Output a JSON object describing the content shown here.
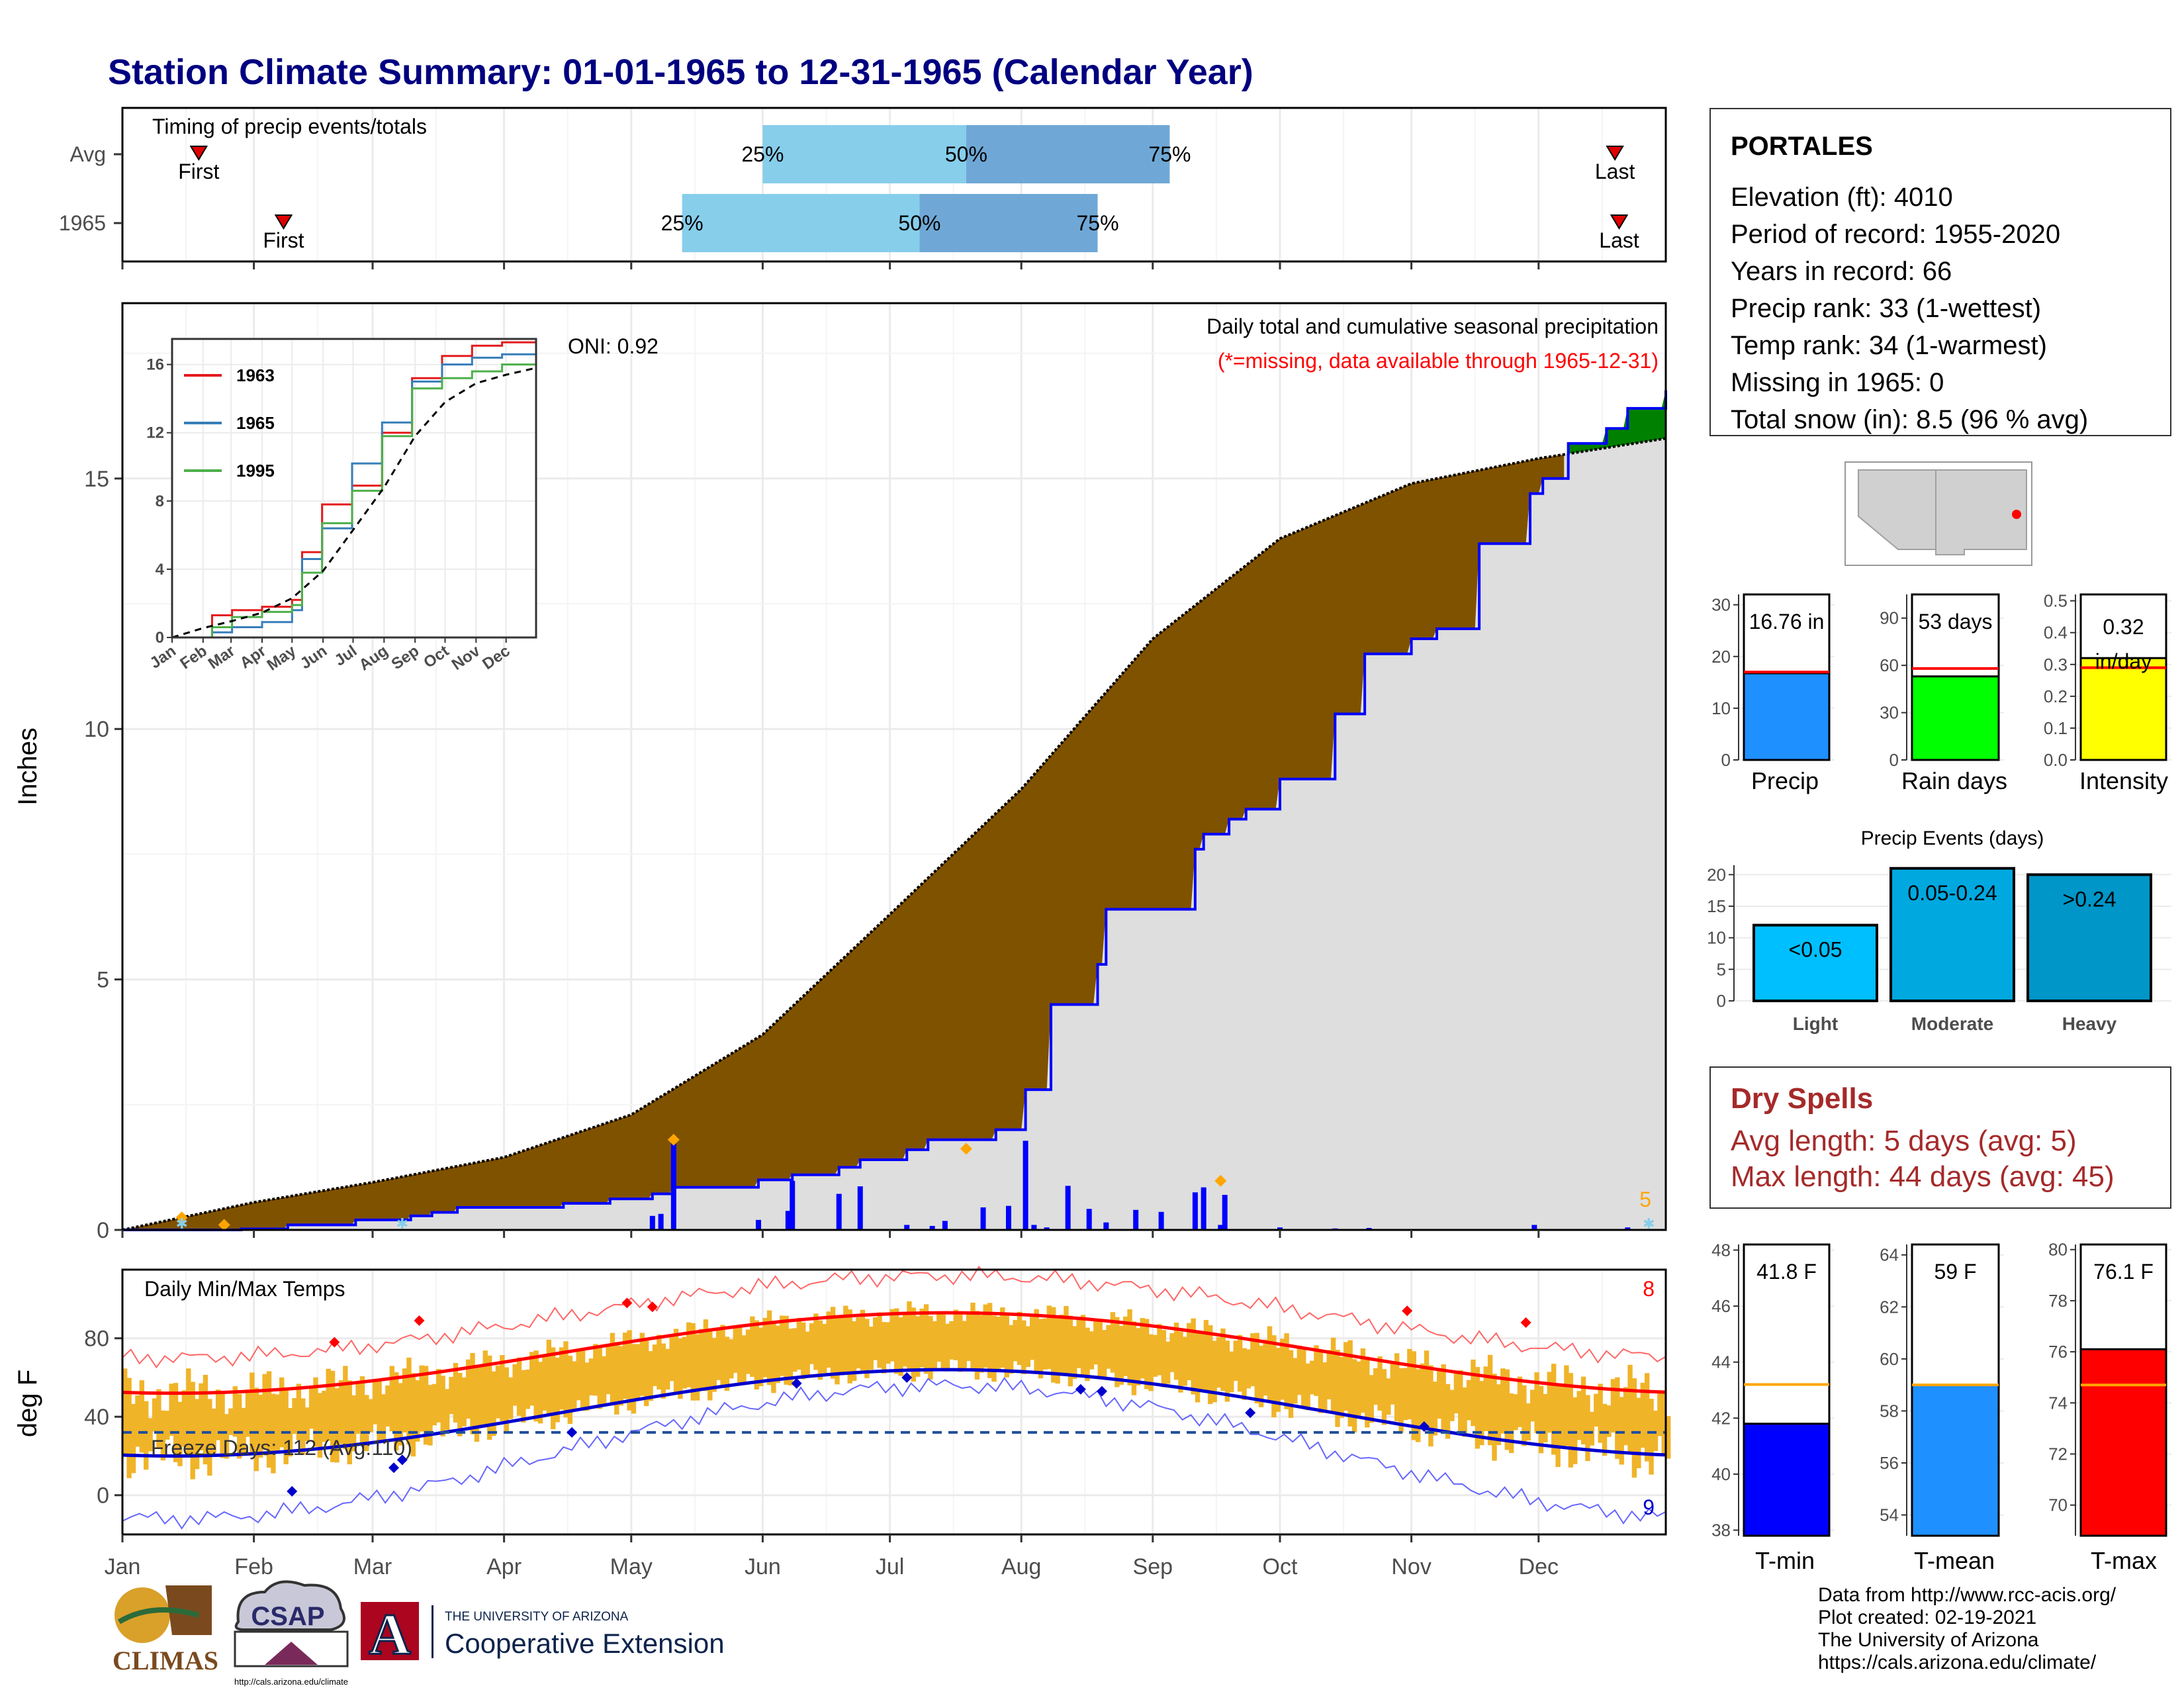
{
  "title": "Station Climate Summary: 01-01-1965 to 12-31-1965 (Calendar Year)",
  "station": {
    "name": "PORTALES",
    "lines": [
      "Elevation (ft): 4010",
      "Period of record: 1955-2020",
      "Years in record: 66",
      "Precip rank: 33 (1-wettest)",
      "Temp rank: 34 (1-warmest)",
      "Missing in 1965: 0",
      "Total snow (in): 8.5 (96 % avg)"
    ]
  },
  "dry_spells": {
    "title": "Dry Spells",
    "avg": "Avg length: 5 days (avg: 5)",
    "max": "Max length: 44 days (avg: 45)"
  },
  "footer": {
    "lines": [
      "Data from http://www.rcc-acis.org/",
      "Plot created: 02-19-2021",
      "The University of Arizona",
      "https://cals.arizona.edu/climate/"
    ]
  },
  "logos": {
    "climas": "CLIMAS",
    "csap": "CSAP",
    "csap_url": "http://cals.arizona.edu/climate",
    "ua_small": "THE UNIVERSITY OF ARIZONA",
    "ua_big": "Cooperative Extension",
    "ua_letter": "A"
  },
  "colors": {
    "title": "#000080",
    "q_light": "#87ceeb",
    "q_dark": "#6fa8d6",
    "precip_green": "#008000",
    "precip_brown": "#7f5200",
    "cumavg_fill": "#dedede",
    "cum_line": "#0000ff",
    "temp_bar": "#f0b429",
    "tmax_line": "#ff0000",
    "tmin_line": "#0000cd",
    "dry_red": "#a52a2a"
  },
  "chart_data": [
    {
      "type": "bar",
      "name": "timing",
      "title": "Timing of precip events/totals",
      "categories": [
        "Avg",
        "1965"
      ],
      "rows": [
        {
          "label": "Avg",
          "first": "Jan 19",
          "p25": "Jun 1",
          "p50": "Jul 19",
          "p75": "Sep 5",
          "last": "Dec 19"
        },
        {
          "label": "1965",
          "first": "Feb 8",
          "p25": "May 13",
          "p50": "Jul 8",
          "p75": "Aug 19",
          "last": "Dec 20"
        }
      ],
      "text": {
        "first": "First",
        "last": "Last",
        "p25": "25%",
        "p50": "50%",
        "p75": "75%"
      }
    },
    {
      "type": "area",
      "name": "cumulative-precip",
      "ylabel": "Inches",
      "ylim": [
        0,
        18.5
      ],
      "yticks": [
        0,
        5,
        10,
        15
      ],
      "xlabels": [
        "Jan",
        "Feb",
        "Mar",
        "Apr",
        "May",
        "Jun",
        "Jul",
        "Aug",
        "Sep",
        "Oct",
        "Nov",
        "Dec"
      ],
      "title": "Daily total and cumulative seasonal precipitation",
      "subtitle": "(*=missing, data available through 1965-12-31)",
      "oni": "ONI: 0.92",
      "corner": "5",
      "avg_cumulative": {
        "x": [
          0,
          31,
          59,
          90,
          120,
          151,
          181,
          212,
          243,
          273,
          304,
          334,
          364
        ],
        "y": [
          0,
          0.55,
          0.95,
          1.45,
          2.3,
          3.9,
          6.3,
          8.8,
          11.8,
          13.8,
          14.9,
          15.4,
          15.8
        ]
      },
      "obs_cumulative": {
        "x": [
          0,
          28,
          39,
          55,
          68,
          73,
          79,
          104,
          115,
          125,
          130,
          150,
          158,
          169,
          174,
          185,
          190,
          206,
          213,
          219,
          230,
          232,
          253,
          255,
          261,
          265,
          273,
          286,
          293,
          304,
          310,
          320,
          332,
          335,
          341,
          350,
          355,
          364
        ],
        "y": [
          0,
          0.02,
          0.1,
          0.2,
          0.28,
          0.35,
          0.45,
          0.53,
          0.62,
          0.72,
          0.85,
          1.0,
          1.1,
          1.25,
          1.4,
          1.6,
          1.8,
          2.0,
          2.8,
          4.5,
          5.3,
          6.4,
          7.6,
          7.9,
          8.2,
          8.4,
          9.0,
          10.3,
          11.5,
          11.8,
          12.0,
          13.7,
          14.7,
          15.0,
          15.7,
          16.0,
          16.4,
          16.76
        ]
      },
      "daily": {
        "x": [
          125,
          127,
          130,
          150,
          157,
          158,
          169,
          174,
          185,
          191,
          194,
          203,
          209,
          213,
          215,
          218,
          223,
          228,
          232,
          239,
          245,
          253,
          255,
          259,
          260,
          273,
          286,
          294,
          304,
          333,
          344,
          355
        ],
        "y": [
          0.28,
          0.32,
          1.78,
          0.2,
          0.38,
          0.98,
          0.72,
          0.87,
          0.1,
          0.08,
          0.18,
          0.45,
          0.48,
          1.78,
          0.1,
          0.05,
          0.88,
          0.42,
          0.15,
          0.4,
          0.36,
          0.75,
          0.85,
          0.1,
          0.7,
          0.05,
          0.03,
          0.04,
          0.02,
          0.1,
          0.02,
          0.05
        ]
      },
      "snow_days": [
        14,
        66,
        360
      ],
      "extreme_days": [
        {
          "x": 14,
          "y": 0.25
        },
        {
          "x": 24,
          "y": 0.1
        },
        {
          "x": 130,
          "y": 1.8
        },
        {
          "x": 199,
          "y": 1.62
        },
        {
          "x": 259,
          "y": 0.98
        }
      ]
    },
    {
      "type": "line",
      "name": "inset-cumulative",
      "xlabels": [
        "Jan",
        "Feb",
        "Mar",
        "Apr",
        "May",
        "Jun",
        "Jul",
        "Aug",
        "Sep",
        "Oct",
        "Nov",
        "Dec"
      ],
      "yticks": [
        0,
        4,
        8,
        12,
        16
      ],
      "ylim": [
        0,
        17.5
      ],
      "series": [
        {
          "name": "1963",
          "x": [
            0,
            40,
            60,
            90,
            120,
            130,
            150,
            180,
            210,
            240,
            270,
            300,
            330,
            364
          ],
          "y": [
            0,
            1.3,
            1.6,
            1.8,
            2.2,
            5.0,
            7.8,
            8.9,
            12.0,
            15.2,
            16.5,
            17.1,
            17.3,
            17.5
          ]
        },
        {
          "name": "1965",
          "x": [
            0,
            40,
            60,
            90,
            120,
            130,
            150,
            180,
            210,
            240,
            270,
            300,
            330,
            364
          ],
          "y": [
            0,
            0.3,
            0.6,
            0.9,
            1.6,
            4.6,
            6.4,
            10.2,
            12.6,
            15.0,
            16.0,
            16.4,
            16.6,
            16.9
          ]
        },
        {
          "name": "1995",
          "x": [
            0,
            40,
            60,
            90,
            120,
            130,
            150,
            180,
            210,
            240,
            270,
            300,
            330,
            364
          ],
          "y": [
            0,
            0.6,
            1.2,
            1.5,
            1.9,
            3.8,
            6.7,
            8.6,
            11.8,
            14.6,
            15.2,
            15.6,
            16.0,
            16.5
          ]
        },
        {
          "name": "avg",
          "x": [
            0,
            31,
            59,
            90,
            120,
            151,
            181,
            212,
            243,
            273,
            304,
            334,
            364
          ],
          "y": [
            0,
            0.55,
            0.95,
            1.45,
            2.3,
            3.9,
            6.3,
            8.8,
            11.8,
            13.8,
            14.9,
            15.4,
            15.8
          ]
        }
      ]
    },
    {
      "type": "bar",
      "name": "daily-temps",
      "title": "Daily Min/Max Temps",
      "ylabel": "deg F",
      "ylim": [
        -20,
        115
      ],
      "yticks": [
        0,
        40,
        80
      ],
      "xlabels": [
        "Jan",
        "Feb",
        "Mar",
        "Apr",
        "May",
        "Jun",
        "Jul",
        "Aug",
        "Sep",
        "Oct",
        "Nov",
        "Dec"
      ],
      "freeze_line": 32,
      "freeze_text": "Freeze Days: 112 (Avg:110)",
      "count_high": "8",
      "count_low": "9",
      "avg_max_range": [
        52,
        93
      ],
      "avg_min_range": [
        20,
        64
      ],
      "record_max_range": [
        70,
        112
      ],
      "record_min_range": [
        -12,
        56
      ]
    },
    {
      "type": "bar",
      "name": "precip-total",
      "xlabel": "Precip",
      "value": 16.76,
      "avg": 17.0,
      "label": "16.76 in",
      "ylim": [
        0,
        32
      ],
      "yticks": [
        0,
        10,
        20,
        30
      ]
    },
    {
      "type": "bar",
      "name": "rain-days",
      "xlabel": "Rain days",
      "value": 53,
      "avg": 58,
      "label": "53 days",
      "ylim": [
        0,
        105
      ],
      "yticks": [
        0,
        30,
        60,
        90
      ]
    },
    {
      "type": "bar",
      "name": "intensity",
      "xlabel": "Intensity",
      "value": 0.32,
      "avg": 0.29,
      "label_lines": [
        "0.32",
        "in/day"
      ],
      "ylim": [
        0,
        0.52
      ],
      "yticks": [
        0.0,
        0.1,
        0.2,
        0.3,
        0.4,
        0.5
      ]
    },
    {
      "type": "bar",
      "name": "precip-events",
      "title": "Precip Events (days)",
      "categories": [
        "Light",
        "Moderate",
        "Heavy"
      ],
      "bar_labels": [
        "<0.05",
        "0.05-0.24",
        ">0.24"
      ],
      "values": [
        12,
        21,
        20
      ],
      "ylim": [
        0,
        21.5
      ],
      "yticks": [
        0,
        5,
        10,
        15,
        20
      ]
    },
    {
      "type": "bar",
      "name": "tmin",
      "xlabel": "T-min",
      "value": 41.8,
      "avg": 43.2,
      "label": "41.8 F",
      "ylim": [
        37.8,
        48.2
      ],
      "yticks": [
        38,
        40,
        42,
        44,
        46,
        48
      ]
    },
    {
      "type": "bar",
      "name": "tmean",
      "xlabel": "T-mean",
      "value": 59.0,
      "avg": 59.0,
      "label": "59 F",
      "ylim": [
        53.2,
        64.4
      ],
      "yticks": [
        54,
        56,
        58,
        60,
        62,
        64
      ]
    },
    {
      "type": "bar",
      "name": "tmax",
      "xlabel": "T-max",
      "value": 76.1,
      "avg": 74.7,
      "label": "76.1 F",
      "ylim": [
        68.8,
        80.2
      ],
      "yticks": [
        70,
        72,
        74,
        76,
        78,
        80
      ]
    }
  ]
}
